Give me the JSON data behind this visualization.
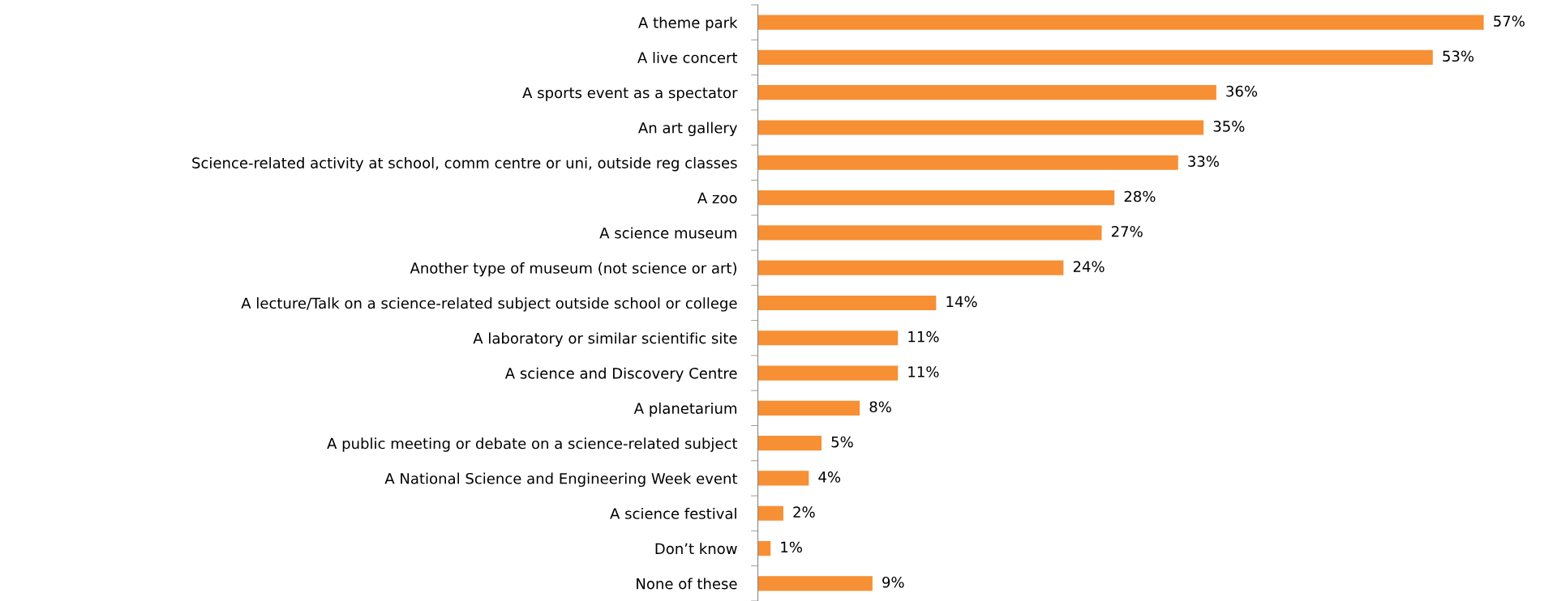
{
  "chart_data": {
    "type": "bar",
    "orientation": "horizontal",
    "color": "#f78f34",
    "categories": [
      "A theme park",
      "A live concert",
      "A sports event as a spectator",
      "An art gallery",
      "Science-related activity at school, comm centre or uni, outside reg classes",
      "A zoo",
      "A science museum",
      "Another type of museum (not science or art)",
      "A lecture/Talk on a science-related subject outside school or college",
      "A laboratory or similar scientific site",
      "A science and Discovery Centre",
      "A planetarium",
      "A public meeting or debate on a science-related subject",
      "A National Science and Engineering Week event",
      "A science festival",
      "Don’t know",
      "None of these"
    ],
    "values": [
      57,
      53,
      36,
      35,
      33,
      28,
      27,
      24,
      14,
      11,
      11,
      8,
      5,
      4,
      2,
      1,
      9
    ],
    "value_labels": [
      "57%",
      "53%",
      "36%",
      "35%",
      "33%",
      "28%",
      "27%",
      "24%",
      "14%",
      "11%",
      "11%",
      "8%",
      "5%",
      "4%",
      "2%",
      "1%",
      "9%"
    ],
    "grid": false,
    "legend": false
  }
}
